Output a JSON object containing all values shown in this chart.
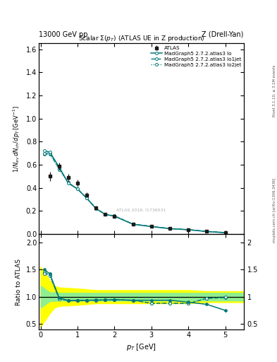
{
  "title_top": "13000 GeV pp",
  "title_right": "Z (Drell-Yan)",
  "plot_title": "Scalar Σ(p_T) (ATLAS UE in Z production)",
  "ylabel_main": "1/N_{ev} dN_{ch}/dp_T [GeV^{-1}]",
  "ylabel_ratio": "Ratio to ATLAS",
  "xlabel": "p_T [GeV]",
  "right_label_top": "Rivet 3.1.10, ≥ 3.1M events",
  "right_label_bottom": "mcplots.cern.ch [arXiv:1306.3436]",
  "watermark": "ATLAS 2019, I1736531",
  "atlas_x": [
    0.25,
    0.5,
    0.75,
    1.0,
    1.25,
    1.5,
    1.75,
    2.0,
    2.5,
    3.0,
    3.5,
    4.0,
    4.5,
    5.0
  ],
  "atlas_y": [
    0.5,
    0.59,
    0.49,
    0.44,
    0.34,
    0.23,
    0.17,
    0.155,
    0.085,
    0.065,
    0.047,
    0.038,
    0.022,
    0.012
  ],
  "atlas_yerr": [
    0.04,
    0.03,
    0.03,
    0.03,
    0.02,
    0.015,
    0.012,
    0.01,
    0.007,
    0.006,
    0.005,
    0.004,
    0.003,
    0.002
  ],
  "mc_x": [
    0.1,
    0.25,
    0.5,
    0.75,
    1.0,
    1.25,
    1.5,
    1.75,
    2.0,
    2.5,
    3.0,
    3.5,
    4.0,
    4.5,
    5.0
  ],
  "mc_lo_y": [
    0.72,
    0.71,
    0.58,
    0.44,
    0.39,
    0.31,
    0.22,
    0.17,
    0.155,
    0.085,
    0.065,
    0.047,
    0.038,
    0.022,
    0.012
  ],
  "mc_lo1jet_y": [
    0.7,
    0.7,
    0.57,
    0.445,
    0.39,
    0.31,
    0.222,
    0.172,
    0.157,
    0.087,
    0.066,
    0.048,
    0.038,
    0.023,
    0.013
  ],
  "mc_lo2jet_y": [
    0.69,
    0.69,
    0.56,
    0.445,
    0.39,
    0.31,
    0.222,
    0.172,
    0.157,
    0.087,
    0.066,
    0.048,
    0.038,
    0.024,
    0.014
  ],
  "ratio_lo_y": [
    1.5,
    1.42,
    0.98,
    0.93,
    0.935,
    0.935,
    0.94,
    0.94,
    0.945,
    0.935,
    0.935,
    0.935,
    0.9,
    0.86,
    0.75
  ],
  "ratio_lo1jet_y": [
    1.45,
    1.4,
    0.97,
    0.925,
    0.925,
    0.935,
    0.935,
    0.94,
    0.945,
    0.935,
    0.88,
    0.88,
    0.875,
    0.97,
    0.985
  ],
  "ratio_lo2jet_y": [
    1.42,
    1.38,
    0.96,
    0.925,
    0.925,
    0.935,
    0.935,
    0.94,
    0.945,
    0.935,
    0.88,
    0.88,
    0.875,
    0.975,
    1.0
  ],
  "band_x": [
    0.0,
    0.25,
    0.375,
    0.5,
    1.0,
    1.5,
    2.0,
    2.5,
    3.0,
    3.5,
    4.0,
    4.5,
    5.0,
    5.5
  ],
  "band_green_lo": [
    0.8,
    0.92,
    0.92,
    0.93,
    0.93,
    0.93,
    0.93,
    0.93,
    0.93,
    0.93,
    0.93,
    0.93,
    0.93,
    0.93
  ],
  "band_green_hi": [
    1.2,
    1.08,
    1.08,
    1.07,
    1.07,
    1.07,
    1.07,
    1.07,
    1.07,
    1.07,
    1.07,
    1.07,
    1.07,
    1.07
  ],
  "band_yellow_lo": [
    0.45,
    0.7,
    0.8,
    0.83,
    0.85,
    0.88,
    0.88,
    0.88,
    0.88,
    0.88,
    0.88,
    0.9,
    0.9,
    0.9
  ],
  "band_yellow_hi": [
    1.55,
    1.3,
    1.2,
    1.17,
    1.15,
    1.12,
    1.12,
    1.12,
    1.12,
    1.12,
    1.12,
    1.1,
    1.1,
    1.1
  ],
  "color_mc": "#007878",
  "color_atlas_marker": "#1a1a1a",
  "ylim_main": [
    0.0,
    1.65
  ],
  "ylim_ratio": [
    0.4,
    2.15
  ],
  "yticks_main": [
    0.0,
    0.2,
    0.4,
    0.6,
    0.8,
    1.0,
    1.2,
    1.4,
    1.6
  ],
  "yticks_ratio": [
    0.5,
    1.0,
    1.5,
    2.0
  ],
  "xlim": [
    -0.05,
    5.5
  ],
  "xticks": [
    0,
    1,
    2,
    3,
    4,
    5
  ]
}
